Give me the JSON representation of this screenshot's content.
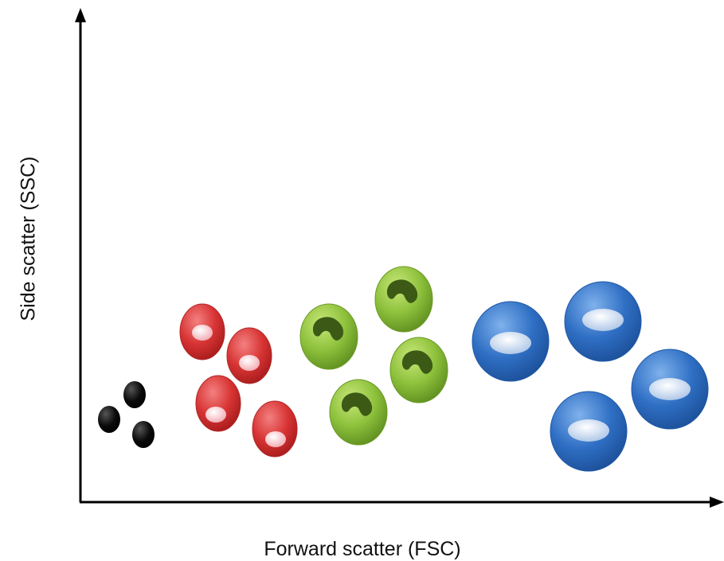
{
  "axes": {
    "x_label": "Forward scatter (FSC)",
    "y_label": "Side scatter (SSC)"
  },
  "colors": {
    "axis": "#000000",
    "dot": "#0a0a0a",
    "red_cell": "#d93b3b",
    "red_nucleus": "#f7c6cc",
    "green_cell": "#8cbf3a",
    "green_nucleus": "#3c5a16",
    "blue_cell": "#2f6fc4",
    "blue_nucleus": "#d4e2f4"
  },
  "populations": [
    {
      "name": "black-dots",
      "count": 3
    },
    {
      "name": "red-cells",
      "count": 4
    },
    {
      "name": "green-cells",
      "count": 4
    },
    {
      "name": "blue-cells",
      "count": 4
    }
  ]
}
